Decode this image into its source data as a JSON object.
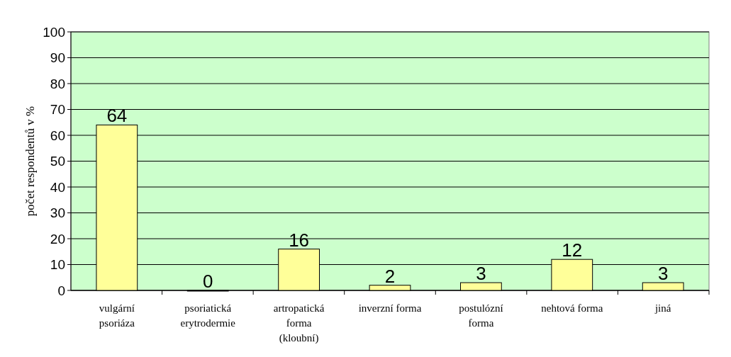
{
  "chart_data": {
    "type": "bar",
    "ylabel": "počet respondentů v %",
    "categories": [
      "vulgární\npsoriáza",
      "psoriatická\nerytrodermie",
      "artropatická\nforma\n(kloubní)",
      "inverzní forma",
      "postulózní\nforma",
      "nehtová  forma",
      "jiná"
    ],
    "values": [
      64,
      0,
      16,
      2,
      3,
      12,
      3
    ],
    "color": "#ffff99",
    "ylim": [
      0,
      100
    ],
    "yticks": [
      0,
      10,
      20,
      30,
      40,
      50,
      60,
      70,
      80,
      90,
      100
    ],
    "grid": "y",
    "data_labels": true
  }
}
